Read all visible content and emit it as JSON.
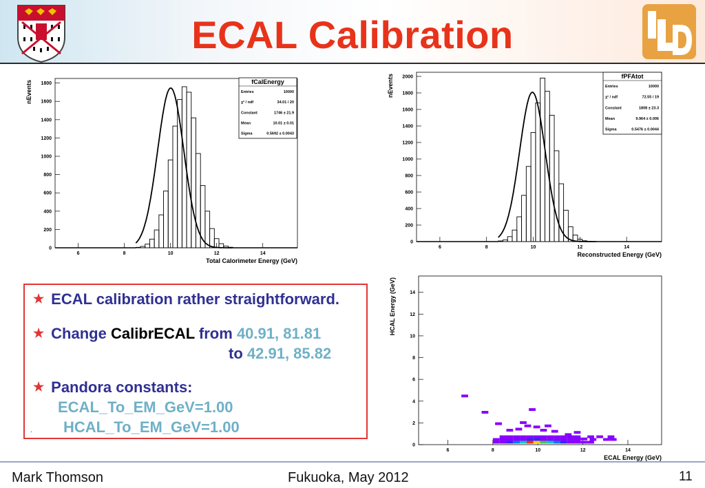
{
  "slide": {
    "title": "ECAL Calibration",
    "footer_left": "Mark Thomson",
    "footer_center": "Fukuoka, May 2012",
    "page_number": "11",
    "colors": {
      "title": "#e8331b",
      "bullet_text": "#303093",
      "value_text": "#6fb0c7",
      "box_border": "#e23434"
    },
    "logos": [
      "cambridge-shield-logo",
      "ild-logo"
    ]
  },
  "bullets": {
    "b1": "ECAL calibration rather straightforward.",
    "b2_prefix": "Change",
    "b2_code": "CalibrECAL",
    "b2_from": "from",
    "b2_from_vals": "40.91, 81.81",
    "b2_to": "to",
    "b2_to_vals": "42.91, 85.82",
    "b3": "Pandora constants:",
    "b3_line1": "ECAL_To_EM_GeV=1.00",
    "b3_line2": "HCAL_To_EM_GeV=1.00",
    "dot": "."
  },
  "chart_data": [
    {
      "type": "bar",
      "subtype": "histogram-with-gaussian-fit",
      "title": "fCalEnergy",
      "xlabel": "Total Calorimeter Energy (GeV)",
      "ylabel": "nEvents",
      "xlim": [
        5.0,
        15.5
      ],
      "ylim": [
        0,
        1850
      ],
      "xticks": [
        6,
        8,
        10,
        12,
        14
      ],
      "yticks": [
        0,
        200,
        400,
        600,
        800,
        1000,
        1200,
        1400,
        1600,
        1800
      ],
      "bin_width": 0.2,
      "bin_start": 8.5,
      "values": [
        5,
        15,
        40,
        95,
        195,
        360,
        620,
        960,
        1330,
        1620,
        1760,
        1700,
        1420,
        1030,
        680,
        400,
        210,
        100,
        45,
        18,
        6
      ],
      "fit": {
        "constant": 1746,
        "mean": 10.01,
        "sigma": 0.5692
      },
      "stats": [
        [
          "Entries",
          "10000"
        ],
        [
          "χ² / ndf",
          "34.01 / 20"
        ],
        [
          "Constant",
          "1746 ± 21.9"
        ],
        [
          "Mean",
          "10.01 ± 0.01"
        ],
        [
          "Sigma",
          "0.5692 ± 0.0043"
        ]
      ]
    },
    {
      "type": "bar",
      "subtype": "histogram-with-gaussian-fit",
      "title": "fPFAtot",
      "xlabel": "Reconstructed Energy (GeV)",
      "ylabel": "nEvents",
      "xlim": [
        5.0,
        15.5
      ],
      "ylim": [
        0,
        2050
      ],
      "xticks": [
        6,
        8,
        10,
        12,
        14
      ],
      "yticks": [
        0,
        200,
        400,
        600,
        800,
        1000,
        1200,
        1400,
        1600,
        1800,
        2000
      ],
      "bin_width": 0.2,
      "bin_start": 8.5,
      "values": [
        8,
        20,
        60,
        140,
        300,
        560,
        910,
        1320,
        1680,
        1980,
        1820,
        1530,
        1100,
        700,
        380,
        180,
        80,
        30,
        10,
        4,
        2
      ],
      "fit": {
        "constant": 1808,
        "mean": 9.964,
        "sigma": 0.5476
      },
      "stats": [
        [
          "Entries",
          "10000"
        ],
        [
          "χ² / ndf",
          "72.55 / 19"
        ],
        [
          "Constant",
          "1808 ± 23.3"
        ],
        [
          "Mean",
          "9.964 ± 0.006"
        ],
        [
          "Sigma",
          "0.5476 ± 0.0044"
        ]
      ]
    },
    {
      "type": "heatmap",
      "xlabel": "ECAL Energy (GeV)",
      "ylabel": "HCAL Energy (GeV)",
      "xlim": [
        4.7,
        15.5
      ],
      "ylim": [
        0,
        15.5
      ],
      "xticks": [
        6,
        8,
        10,
        12,
        14
      ],
      "yticks": [
        0,
        2,
        4,
        6,
        8,
        10,
        12,
        14
      ],
      "cell_w": 0.3,
      "cell_h": 0.25,
      "cells": [
        {
          "x": 6.6,
          "y": 4.35,
          "c": "#8800ff"
        },
        {
          "x": 7.5,
          "y": 2.85,
          "c": "#8800ff"
        },
        {
          "x": 9.6,
          "y": 3.1,
          "c": "#8800ff"
        },
        {
          "x": 8.1,
          "y": 1.8,
          "c": "#8800ff"
        },
        {
          "x": 9.2,
          "y": 1.9,
          "c": "#8800ff"
        },
        {
          "x": 9.4,
          "y": 1.6,
          "c": "#8800ff"
        },
        {
          "x": 9.8,
          "y": 1.5,
          "c": "#8800ff"
        },
        {
          "x": 10.3,
          "y": 1.6,
          "c": "#8800ff"
        },
        {
          "x": 11.6,
          "y": 1.0,
          "c": "#8800ff"
        },
        {
          "x": 12.6,
          "y": 0.6,
          "c": "#8800ff"
        },
        {
          "x": 13.1,
          "y": 0.6,
          "c": "#8800ff"
        },
        {
          "x": 11.9,
          "y": 0.4,
          "c": "#8800ff"
        },
        {
          "x": 8.6,
          "y": 1.2,
          "c": "#8800ff"
        },
        {
          "x": 9.0,
          "y": 1.3,
          "c": "#8800ff"
        },
        {
          "x": 10.1,
          "y": 1.2,
          "c": "#8800ff"
        },
        {
          "x": 10.6,
          "y": 1.1,
          "c": "#8800ff"
        },
        {
          "x": 11.2,
          "y": 0.8,
          "c": "#8800ff"
        },
        {
          "x": 12.2,
          "y": 0.6,
          "c": "#8800ff"
        },
        {
          "x": 8.3,
          "y": 0.6,
          "c": "#8800ff"
        },
        {
          "x": 8.6,
          "y": 0.6,
          "c": "#8800ff"
        },
        {
          "x": 8.9,
          "y": 0.6,
          "c": "#8800ff"
        },
        {
          "x": 9.2,
          "y": 0.6,
          "c": "#8800ff"
        },
        {
          "x": 9.5,
          "y": 0.6,
          "c": "#8800ff"
        },
        {
          "x": 9.8,
          "y": 0.6,
          "c": "#8800ff"
        },
        {
          "x": 10.1,
          "y": 0.6,
          "c": "#8800ff"
        },
        {
          "x": 10.4,
          "y": 0.6,
          "c": "#8800ff"
        },
        {
          "x": 10.7,
          "y": 0.6,
          "c": "#8800ff"
        },
        {
          "x": 11.0,
          "y": 0.6,
          "c": "#8800ff"
        },
        {
          "x": 11.3,
          "y": 0.6,
          "c": "#8800ff"
        },
        {
          "x": 11.6,
          "y": 0.6,
          "c": "#8800ff"
        },
        {
          "x": 8.0,
          "y": 0.35,
          "c": "#8800ff"
        },
        {
          "x": 8.3,
          "y": 0.35,
          "c": "#8800ff"
        },
        {
          "x": 8.6,
          "y": 0.35,
          "c": "#8800ff"
        },
        {
          "x": 8.9,
          "y": 0.35,
          "c": "#8800ff"
        },
        {
          "x": 9.2,
          "y": 0.35,
          "c": "#8800ff"
        },
        {
          "x": 9.5,
          "y": 0.35,
          "c": "#3322ff"
        },
        {
          "x": 9.8,
          "y": 0.35,
          "c": "#3322ff"
        },
        {
          "x": 10.1,
          "y": 0.35,
          "c": "#8800ff"
        },
        {
          "x": 10.4,
          "y": 0.35,
          "c": "#8800ff"
        },
        {
          "x": 10.7,
          "y": 0.35,
          "c": "#8800ff"
        },
        {
          "x": 11.0,
          "y": 0.35,
          "c": "#8800ff"
        },
        {
          "x": 11.3,
          "y": 0.35,
          "c": "#8800ff"
        },
        {
          "x": 11.6,
          "y": 0.35,
          "c": "#8800ff"
        },
        {
          "x": 12.3,
          "y": 0.35,
          "c": "#8800ff"
        },
        {
          "x": 12.9,
          "y": 0.35,
          "c": "#8800ff"
        },
        {
          "x": 13.2,
          "y": 0.35,
          "c": "#8800ff"
        },
        {
          "x": 8.0,
          "y": 0.1,
          "c": "#8800ff"
        },
        {
          "x": 8.3,
          "y": 0.1,
          "c": "#8800ff"
        },
        {
          "x": 8.6,
          "y": 0.1,
          "c": "#3322ff"
        },
        {
          "x": 8.9,
          "y": 0.1,
          "c": "#0077ff"
        },
        {
          "x": 9.2,
          "y": 0.1,
          "c": "#00c8d0"
        },
        {
          "x": 9.5,
          "y": 0.1,
          "c": "#ff2a00"
        },
        {
          "x": 9.8,
          "y": 0.1,
          "c": "#ffcc00"
        },
        {
          "x": 10.1,
          "y": 0.1,
          "c": "#3bc45a"
        },
        {
          "x": 10.4,
          "y": 0.1,
          "c": "#00c8d0"
        },
        {
          "x": 10.7,
          "y": 0.1,
          "c": "#0077ff"
        },
        {
          "x": 11.0,
          "y": 0.1,
          "c": "#3322ff"
        },
        {
          "x": 11.3,
          "y": 0.1,
          "c": "#8800ff"
        },
        {
          "x": 11.6,
          "y": 0.1,
          "c": "#8800ff"
        },
        {
          "x": 11.9,
          "y": 0.1,
          "c": "#8800ff"
        },
        {
          "x": 12.2,
          "y": 0.1,
          "c": "#8800ff"
        }
      ]
    }
  ]
}
